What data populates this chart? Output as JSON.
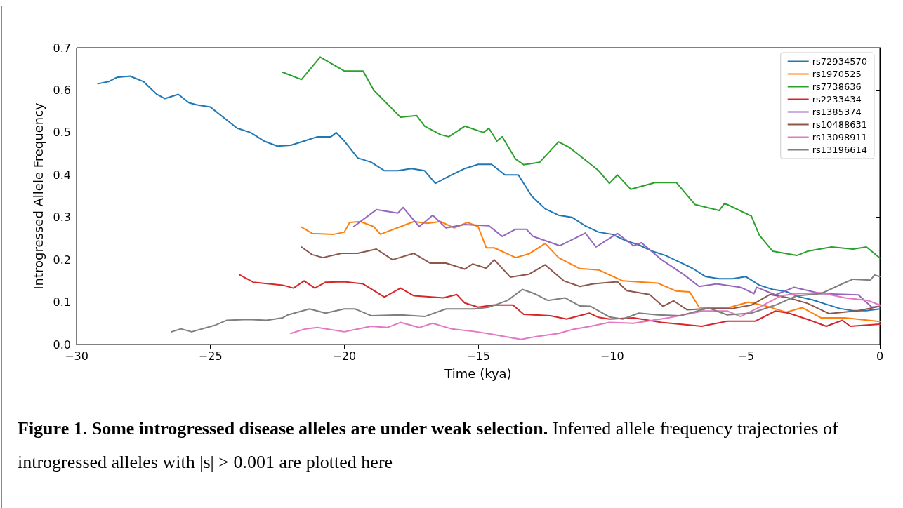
{
  "chart_data": {
    "type": "line",
    "xlabel": "Time (kya)",
    "ylabel": "Introgressed Allele Frequency",
    "xlim": [
      -30,
      0
    ],
    "ylim": [
      0,
      0.7
    ],
    "xticks": [
      {
        "value": -30,
        "label": "−30"
      },
      {
        "value": -25,
        "label": "−25"
      },
      {
        "value": -20,
        "label": "−20"
      },
      {
        "value": -15,
        "label": "−15"
      },
      {
        "value": -10,
        "label": "−10"
      },
      {
        "value": -5,
        "label": "−5"
      },
      0
    ],
    "yticks": [
      {
        "value": 0,
        "label": "0.0"
      },
      0.1,
      0.2,
      0.3,
      0.4,
      0.5,
      0.6,
      0.7
    ],
    "grid": false,
    "legend": "top right",
    "marker": "none",
    "line_style": "solid",
    "annotations": [
      "Figure 1. Some introgressed disease alleles are under weak selection.",
      "Inferred allele frequency trajectories of introgressed alleles with |s| > 0.001 are plotted here"
    ],
    "series": [
      {
        "name": "rs72934570",
        "color": "#1f77b4",
        "x": [
          -29.2,
          -28.8,
          -28.5,
          -28.0,
          -27.5,
          -27.0,
          -26.7,
          -26.2,
          -25.8,
          -25.5,
          -25.0,
          -24.5,
          -24.0,
          -23.5,
          -23.0,
          -22.5,
          -22.0,
          -21.5,
          -21.0,
          -20.5,
          -20.3,
          -20.0,
          -19.5,
          -19.0,
          -18.5,
          -18.0,
          -17.5,
          -17.0,
          -16.6,
          -16.0,
          -15.5,
          -15.0,
          -14.5,
          -14.0,
          -13.5,
          -13.0,
          -12.5,
          -12.0,
          -11.5,
          -11.0,
          -10.5,
          -10.0,
          -9.5,
          -9.0,
          -8.5,
          -8.0,
          -7.5,
          -7.0,
          -6.5,
          -6.0,
          -5.5,
          -5.0,
          -4.5,
          -4.0,
          -3.5,
          -3.1,
          -2.5,
          -2.0,
          -1.5,
          -1.0,
          -0.5,
          0
        ],
        "values": [
          0.615,
          0.62,
          0.63,
          0.633,
          0.62,
          0.59,
          0.58,
          0.59,
          0.57,
          0.565,
          0.56,
          0.535,
          0.51,
          0.5,
          0.48,
          0.468,
          0.47,
          0.48,
          0.49,
          0.49,
          0.5,
          0.48,
          0.44,
          0.43,
          0.41,
          0.41,
          0.415,
          0.41,
          0.38,
          0.4,
          0.415,
          0.425,
          0.425,
          0.4,
          0.4,
          0.35,
          0.32,
          0.305,
          0.3,
          0.28,
          0.265,
          0.26,
          0.245,
          0.235,
          0.22,
          0.21,
          0.195,
          0.18,
          0.16,
          0.155,
          0.155,
          0.16,
          0.14,
          0.13,
          0.125,
          0.114,
          0.105,
          0.095,
          0.085,
          0.08,
          0.08,
          0.084
        ]
      },
      {
        "name": "rs1970525",
        "color": "#ff7f0e",
        "x": [
          -21.6,
          -21.2,
          -20.4,
          -20.0,
          -19.8,
          -19.4,
          -18.9,
          -18.65,
          -17.9,
          -17.4,
          -16.9,
          -16.4,
          -15.9,
          -15.4,
          -15.0,
          -14.7,
          -14.4,
          -13.6,
          -13.1,
          -12.5,
          -12.0,
          -11.2,
          -10.5,
          -9.6,
          -8.3,
          -7.6,
          -7.1,
          -6.75,
          -5.7,
          -4.9,
          -4.2,
          -3.5,
          -2.9,
          -2.2,
          -1.3,
          0
        ],
        "values": [
          0.277,
          0.262,
          0.26,
          0.265,
          0.288,
          0.29,
          0.278,
          0.26,
          0.278,
          0.29,
          0.286,
          0.29,
          0.275,
          0.288,
          0.278,
          0.228,
          0.228,
          0.205,
          0.214,
          0.238,
          0.205,
          0.179,
          0.176,
          0.15,
          0.145,
          0.126,
          0.124,
          0.088,
          0.086,
          0.1,
          0.09,
          0.076,
          0.087,
          0.063,
          0.063,
          0.054
        ]
      },
      {
        "name": "rs7738636",
        "color": "#2ca02c",
        "x": [
          -22.3,
          -21.6,
          -20.9,
          -20.0,
          -19.3,
          -18.9,
          -17.9,
          -17.3,
          -17.0,
          -16.4,
          -16.1,
          -15.5,
          -14.8,
          -14.6,
          -14.3,
          -14.1,
          -13.6,
          -13.3,
          -12.7,
          -12.0,
          -11.6,
          -11.3,
          -10.5,
          -10.1,
          -9.8,
          -9.3,
          -8.4,
          -7.6,
          -6.9,
          -6.0,
          -5.8,
          -4.8,
          -4.5,
          -4.0,
          -3.1,
          -2.7,
          -1.8,
          -1.0,
          -0.5,
          0
        ],
        "values": [
          0.642,
          0.625,
          0.678,
          0.645,
          0.645,
          0.6,
          0.536,
          0.54,
          0.515,
          0.495,
          0.49,
          0.515,
          0.5,
          0.51,
          0.48,
          0.49,
          0.437,
          0.424,
          0.43,
          0.478,
          0.465,
          0.45,
          0.41,
          0.38,
          0.4,
          0.366,
          0.382,
          0.382,
          0.33,
          0.316,
          0.333,
          0.303,
          0.258,
          0.22,
          0.21,
          0.22,
          0.23,
          0.225,
          0.23,
          0.204
        ]
      },
      {
        "name": "rs2233434",
        "color": "#d62728",
        "x": [
          -23.9,
          -23.4,
          -22.3,
          -21.9,
          -21.5,
          -21.1,
          -20.7,
          -20.0,
          -19.3,
          -18.5,
          -17.9,
          -17.4,
          -16.3,
          -15.8,
          -15.5,
          -15.0,
          -14.45,
          -13.7,
          -13.3,
          -12.3,
          -11.7,
          -10.85,
          -10.5,
          -10.1,
          -9.2,
          -8.15,
          -6.65,
          -5.7,
          -4.65,
          -3.9,
          -3.4,
          -2.6,
          -2.0,
          -1.4,
          -1.1,
          0
        ],
        "values": [
          0.164,
          0.147,
          0.14,
          0.133,
          0.15,
          0.133,
          0.147,
          0.148,
          0.143,
          0.112,
          0.133,
          0.115,
          0.11,
          0.118,
          0.098,
          0.088,
          0.093,
          0.093,
          0.071,
          0.068,
          0.06,
          0.074,
          0.064,
          0.06,
          0.063,
          0.052,
          0.043,
          0.055,
          0.055,
          0.079,
          0.074,
          0.057,
          0.043,
          0.057,
          0.043,
          0.048
        ]
      },
      {
        "name": "rs1385374",
        "color": "#9467bd",
        "x": [
          -19.65,
          -18.8,
          -18.0,
          -17.8,
          -17.2,
          -16.7,
          -16.2,
          -15.5,
          -14.6,
          -14.1,
          -13.6,
          -13.2,
          -12.95,
          -11.95,
          -11.4,
          -11.0,
          -10.6,
          -9.8,
          -9.2,
          -8.9,
          -8.15,
          -7.3,
          -6.75,
          -6.1,
          -5.2,
          -4.7,
          -4.6,
          -3.9,
          -3.2,
          -2.2,
          -0.8,
          -0.3,
          0
        ],
        "values": [
          0.278,
          0.318,
          0.31,
          0.323,
          0.278,
          0.305,
          0.275,
          0.283,
          0.28,
          0.255,
          0.272,
          0.272,
          0.255,
          0.233,
          0.25,
          0.263,
          0.23,
          0.262,
          0.233,
          0.24,
          0.2,
          0.164,
          0.137,
          0.143,
          0.135,
          0.12,
          0.135,
          0.117,
          0.135,
          0.12,
          0.117,
          0.088,
          0.09
        ]
      },
      {
        "name": "rs10488631",
        "color": "#8c564b",
        "x": [
          -21.6,
          -21.2,
          -20.8,
          -20.1,
          -19.5,
          -18.8,
          -18.2,
          -17.4,
          -16.8,
          -16.2,
          -15.5,
          -15.2,
          -14.7,
          -14.4,
          -13.8,
          -13.1,
          -12.5,
          -11.8,
          -11.2,
          -10.7,
          -9.8,
          -9.45,
          -8.6,
          -8.1,
          -7.7,
          -7.2,
          -6.4,
          -5.5,
          -4.8,
          -4.1,
          -3.4,
          -2.7,
          -1.9,
          -0.8,
          0
        ],
        "values": [
          0.23,
          0.212,
          0.205,
          0.215,
          0.215,
          0.225,
          0.2,
          0.215,
          0.192,
          0.192,
          0.178,
          0.19,
          0.18,
          0.2,
          0.159,
          0.166,
          0.188,
          0.15,
          0.137,
          0.143,
          0.148,
          0.127,
          0.118,
          0.09,
          0.103,
          0.082,
          0.085,
          0.085,
          0.093,
          0.118,
          0.11,
          0.097,
          0.073,
          0.08,
          0.09
        ]
      },
      {
        "name": "rs13098911",
        "color": "#e377c2",
        "x": [
          -22.0,
          -21.45,
          -21.0,
          -20.0,
          -19.0,
          -18.4,
          -17.9,
          -17.2,
          -16.7,
          -16.0,
          -15.05,
          -14.4,
          -13.4,
          -12.9,
          -12.0,
          -11.5,
          -10.8,
          -10.1,
          -9.2,
          -7.9,
          -6.6,
          -5.7,
          -5.2,
          -4.5,
          -3.7,
          -3.1,
          -2.2,
          -1.3,
          -0.45,
          0
        ],
        "values": [
          0.026,
          0.037,
          0.04,
          0.03,
          0.043,
          0.04,
          0.052,
          0.04,
          0.05,
          0.037,
          0.03,
          0.023,
          0.012,
          0.018,
          0.026,
          0.035,
          0.043,
          0.052,
          0.05,
          0.063,
          0.079,
          0.079,
          0.066,
          0.088,
          0.115,
          0.12,
          0.122,
          0.11,
          0.104,
          0.093
        ]
      },
      {
        "name": "rs13196614",
        "color": "#7f7f7f",
        "x": [
          -26.45,
          -26.1,
          -25.7,
          -24.8,
          -24.4,
          -23.6,
          -22.9,
          -22.3,
          -22.1,
          -21.3,
          -20.7,
          -20.0,
          -19.6,
          -19.0,
          -17.9,
          -17.0,
          -16.2,
          -15.15,
          -14.6,
          -13.9,
          -13.35,
          -12.9,
          -12.4,
          -11.75,
          -11.2,
          -10.8,
          -10.1,
          -9.6,
          -9.0,
          -8.3,
          -7.45,
          -6.4,
          -5.7,
          -4.8,
          -3.9,
          -3.1,
          -2.2,
          -1.3,
          -1.0,
          -0.35,
          -0.2,
          0
        ],
        "values": [
          0.03,
          0.037,
          0.03,
          0.046,
          0.057,
          0.059,
          0.057,
          0.063,
          0.07,
          0.084,
          0.074,
          0.084,
          0.084,
          0.068,
          0.07,
          0.066,
          0.084,
          0.084,
          0.088,
          0.104,
          0.13,
          0.12,
          0.104,
          0.11,
          0.091,
          0.09,
          0.065,
          0.06,
          0.074,
          0.07,
          0.068,
          0.086,
          0.07,
          0.074,
          0.093,
          0.115,
          0.12,
          0.146,
          0.154,
          0.152,
          0.164,
          0.16
        ]
      }
    ]
  }
}
